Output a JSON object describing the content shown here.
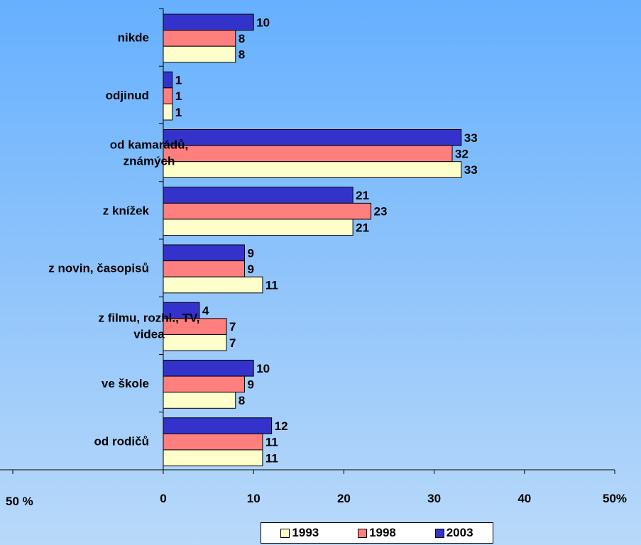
{
  "chart_data": {
    "type": "bar",
    "orientation": "horizontal",
    "categories": [
      [
        "nikde"
      ],
      [
        "odjinud"
      ],
      [
        "od kamarádů,",
        "známých"
      ],
      [
        "z knížek"
      ],
      [
        "z novin, časopisů"
      ],
      [
        "z filmu, rozhl., TV,",
        "videa"
      ],
      [
        "ve škole"
      ],
      [
        "od rodičů"
      ]
    ],
    "series": [
      {
        "name": "2003",
        "color": "#3333cc",
        "values": [
          10,
          1,
          33,
          21,
          9,
          4,
          10,
          12
        ]
      },
      {
        "name": "1998",
        "color": "#ff7f7f",
        "values": [
          8,
          1,
          32,
          23,
          9,
          7,
          9,
          11
        ]
      },
      {
        "name": "1993",
        "color": "#ffffcc",
        "values": [
          8,
          1,
          33,
          21,
          11,
          7,
          8,
          11
        ]
      }
    ],
    "x_ticks": [
      "0",
      "10",
      "20",
      "30",
      "40",
      "50%"
    ],
    "xlim": [
      0,
      50
    ],
    "stray_label": "50 %",
    "legend": {
      "placement": "bottom",
      "entries": [
        {
          "label": "1993",
          "color": "#ffffcc"
        },
        {
          "label": "1998",
          "color": "#ff7f7f"
        },
        {
          "label": "2003",
          "color": "#3333cc"
        }
      ]
    },
    "grid": false
  }
}
